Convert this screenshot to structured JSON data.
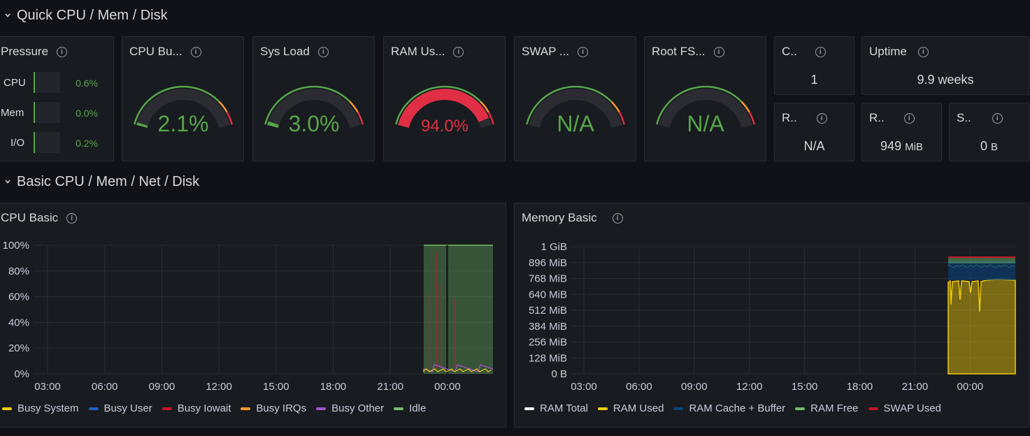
{
  "rows": [
    {
      "title": "Quick CPU / Mem / Disk"
    },
    {
      "title": "Basic CPU / Mem / Net / Disk"
    }
  ],
  "pressure": {
    "title": "Pressure",
    "items": [
      {
        "label": "CPU",
        "value": "0.6%"
      },
      {
        "label": "Mem",
        "value": "0.0%"
      },
      {
        "label": "I/O",
        "value": "0.2%"
      }
    ]
  },
  "gauges": [
    {
      "title": "CPU Bu...",
      "value": "2.1%",
      "percent": 2.1,
      "color": "#56a64b"
    },
    {
      "title": "Sys Load",
      "value": "3.0%",
      "percent": 3.0,
      "color": "#56a64b"
    },
    {
      "title": "RAM Us...",
      "value": "94.0%",
      "percent": 94.0,
      "color": "#e02f44"
    },
    {
      "title": "SWAP ...",
      "value": "N/A",
      "percent": 0,
      "color": "#56a64b"
    },
    {
      "title": "Root FS...",
      "value": "N/A",
      "percent": 0,
      "color": "#56a64b"
    }
  ],
  "stats": {
    "cores": {
      "title": "C..",
      "value": "1"
    },
    "uptime": {
      "title": "Uptime",
      "value": "9.9 weeks"
    },
    "rootfs_total": {
      "title": "R..",
      "value": "N/A"
    },
    "ram_total": {
      "title": "R..",
      "value": "949",
      "unit": "MiB"
    },
    "swap_total": {
      "title": "S..",
      "value": "0",
      "unit": "B"
    }
  },
  "colors": {
    "green": "#56a64b",
    "red": "#e02f44",
    "orange": "#ff9830",
    "blue": "#1f60c4",
    "purple": "#a352cc",
    "yellow": "#f2cc0c",
    "darkred": "#c4162a",
    "darkblue": "#0a437c",
    "lightgreen": "#73bf69"
  },
  "cpu_chart": {
    "title": "CPU Basic",
    "chart_data": {
      "type": "area",
      "y_ticks": [
        "100%",
        "80%",
        "60%",
        "40%",
        "20%",
        "0%"
      ],
      "x_ticks": [
        "03:00",
        "06:00",
        "09:00",
        "12:00",
        "15:00",
        "18:00",
        "21:00",
        "00:00"
      ],
      "ylim": [
        0,
        100
      ],
      "series": [
        {
          "name": "Busy System",
          "color": "#f2cc0c"
        },
        {
          "name": "Busy User",
          "color": "#1f60c4"
        },
        {
          "name": "Busy Iowait",
          "color": "#c4162a"
        },
        {
          "name": "Busy IRQs",
          "color": "#ff9830"
        },
        {
          "name": "Busy Other",
          "color": "#a352cc"
        },
        {
          "name": "Idle",
          "color": "#73bf69"
        }
      ]
    }
  },
  "mem_chart": {
    "title": "Memory Basic",
    "chart_data": {
      "type": "area",
      "y_ticks": [
        "1 GiB",
        "896 MiB",
        "768 MiB",
        "640 MiB",
        "512 MiB",
        "384 MiB",
        "256 MiB",
        "128 MiB",
        "0 B"
      ],
      "x_ticks": [
        "03:00",
        "06:00",
        "09:00",
        "12:00",
        "15:00",
        "18:00",
        "21:00",
        "00:00"
      ],
      "series": [
        {
          "name": "RAM Total",
          "color": "#ffffff"
        },
        {
          "name": "RAM Used",
          "color": "#f2cc0c"
        },
        {
          "name": "RAM Cache + Buffer",
          "color": "#0a437c"
        },
        {
          "name": "RAM Free",
          "color": "#73bf69"
        },
        {
          "name": "SWAP Used",
          "color": "#c4162a"
        }
      ]
    }
  }
}
